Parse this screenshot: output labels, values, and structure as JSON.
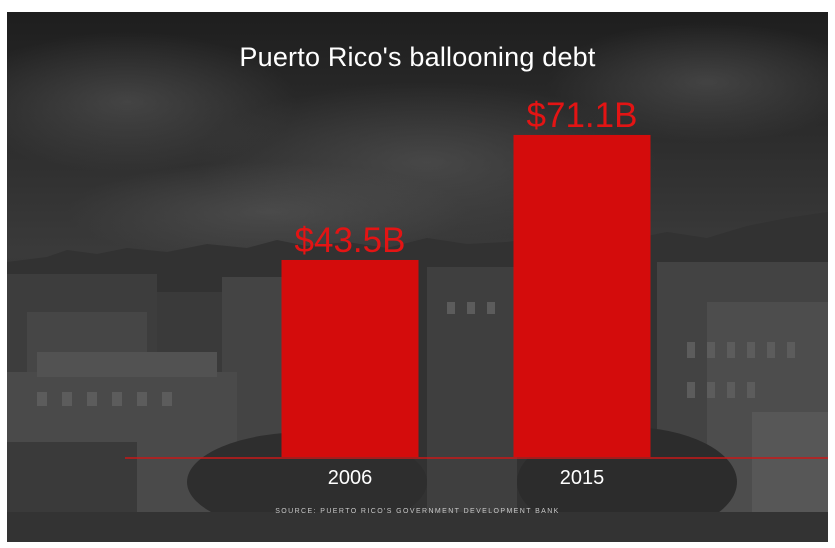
{
  "chart_data": {
    "type": "bar",
    "title": "Puerto Rico's ballooning debt",
    "categories": [
      "2006",
      "2015"
    ],
    "values": [
      43.5,
      71.1
    ],
    "value_labels": [
      "$43.5B",
      "$71.1B"
    ],
    "unit": "B",
    "xlabel": "",
    "ylabel": "",
    "ylim": [
      0,
      85
    ],
    "grid": false,
    "legend": "none",
    "source": "SOURCE: PUERTO RICO'S GOVERNMENT DEVELOPMENT BANK",
    "colors": {
      "bar": "#d40c0c",
      "value_label": "#e31414",
      "baseline": "#c81818",
      "text": "#ffffff",
      "background": "#2a2a2a"
    }
  }
}
